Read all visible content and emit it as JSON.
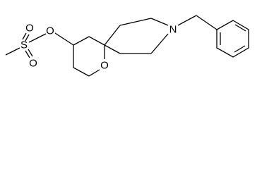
{
  "atoms": [
    {
      "label": "S"
    },
    {
      "label": "O"
    },
    {
      "label": "O"
    },
    {
      "label": "O"
    },
    {
      "label": "O"
    },
    {
      "label": "N"
    }
  ]
}
